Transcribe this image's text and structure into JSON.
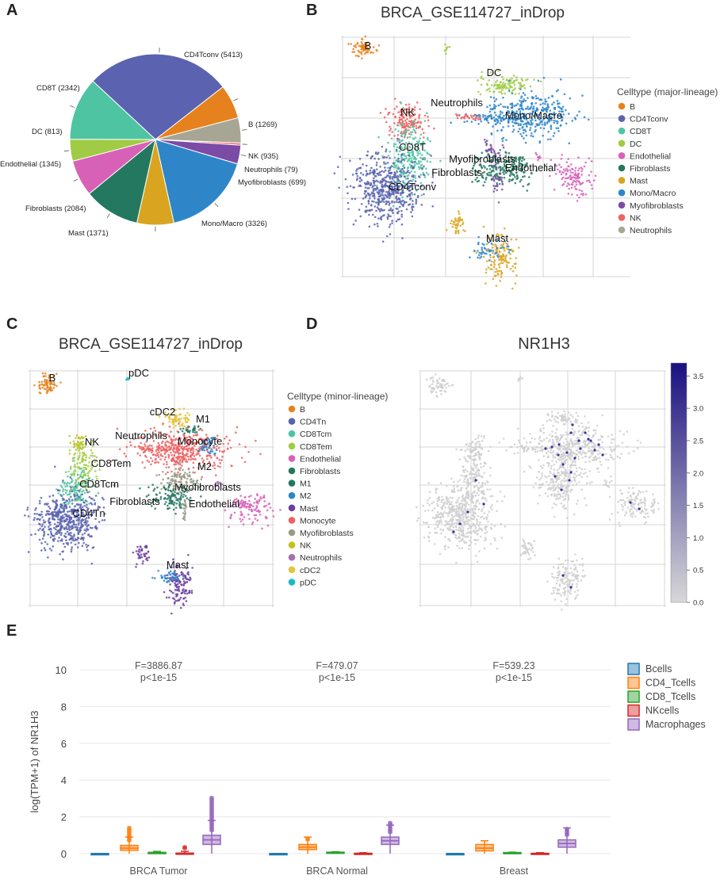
{
  "panel_letters": {
    "a": "A",
    "b": "B",
    "c": "C",
    "d": "D",
    "e": "E"
  },
  "colors": {
    "B": "#e6821e",
    "CD4Tconv": "#5b63b0",
    "CD8T": "#4fc4a2",
    "DC": "#a0cc45",
    "Endothelial": "#d861b8",
    "Fibroblasts": "#247860",
    "Mast": "#d9a520",
    "MonoMacro": "#2e86c9",
    "Myofibroblasts": "#7b4ba6",
    "NK": "#ee6262",
    "Neutrophils": "#a7a594",
    "CD4Tn": "#5b63b0",
    "CD8Tcm": "#4fc4a2",
    "CD8Tem": "#a0cc45",
    "M1": "#247860",
    "M2": "#2e86c9",
    "MastMinor": "#6b3fa0",
    "Monocyte": "#ee6262",
    "MyofibMinor": "#9c9a88",
    "NKMinor": "#c2c21e",
    "NeutroMinor": "#a770b0",
    "cDC2": "#e5c43a",
    "pDC": "#20b8c8",
    "Grey": "#cfcfcf",
    "Dot": "#3a32a0"
  },
  "chart_data": [
    {
      "id": "A",
      "type": "pie",
      "title": "",
      "slices": [
        {
          "name": "CD4Tconv",
          "value": 5413,
          "label": "CD4Tconv (5413)"
        },
        {
          "name": "B",
          "value": 1269,
          "label": "B (1269)"
        },
        {
          "name": "NK",
          "value": 935,
          "label": "NK (935)"
        },
        {
          "name": "Neutrophils",
          "value": 79,
          "label": "Neutrophils (79)"
        },
        {
          "name": "Myofibroblasts",
          "value": 699,
          "label": "Myofibroblasts (699)"
        },
        {
          "name": "Mono/Macro",
          "value": 3326,
          "label": "Mono/Macro (3326)"
        },
        {
          "name": "Mast",
          "value": 1371,
          "label": "Mast (1371)"
        },
        {
          "name": "Fibroblasts",
          "value": 2084,
          "label": "Fibroblasts (2084)"
        },
        {
          "name": "Endothelial",
          "value": 1345,
          "label": "Endothelial (1345)"
        },
        {
          "name": "DC",
          "value": 813,
          "label": "DC (813)"
        },
        {
          "name": "CD8T",
          "value": 2342,
          "label": "CD8T (2342)"
        }
      ]
    },
    {
      "id": "B",
      "type": "scatter",
      "title": "BRCA_GSE114727_inDrop",
      "legend_title": "Celltype (major-lineage)",
      "legend": [
        "B",
        "CD4Tconv",
        "CD8T",
        "DC",
        "Endothelial",
        "Fibroblasts",
        "Mast",
        "Mono/Macro",
        "Myofibroblasts",
        "NK",
        "Neutrophils"
      ],
      "cluster_labels": [
        "B",
        "DC",
        "Neutrophils",
        "NK",
        "Mono/Macro",
        "CD8T",
        "Myofibroblasts",
        "Fibroblasts",
        "Endothelial",
        "CD4Tconv",
        "Mast"
      ]
    },
    {
      "id": "C",
      "type": "scatter",
      "title": "BRCA_GSE114727_inDrop",
      "legend_title": "Celltype (minor-lineage)",
      "legend": [
        "B",
        "CD4Tn",
        "CD8Tcm",
        "CD8Tem",
        "Endothelial",
        "Fibroblasts",
        "M1",
        "M2",
        "Mast",
        "Monocyte",
        "Myofibroblasts",
        "NK",
        "Neutrophils",
        "cDC2",
        "pDC"
      ],
      "cluster_labels": [
        "B",
        "pDC",
        "cDC2",
        "M1",
        "Neutrophils",
        "NK",
        "Monocyte",
        "CD8Tem",
        "M2",
        "CD8Tcm",
        "Myofibroblasts",
        "Fibroblasts",
        "Endothelial",
        "CD4Tn",
        "Mast"
      ]
    },
    {
      "id": "D",
      "type": "scatter",
      "title": "NR1H3",
      "colorbar": {
        "min": 0,
        "max": 3.7,
        "ticks": [
          "0.0",
          "0.5",
          "1.0",
          "1.5",
          "2.0",
          "2.5",
          "3.0",
          "3.5"
        ]
      }
    },
    {
      "id": "E",
      "type": "box",
      "ylabel": "log(TPM+1) of NR1H3",
      "ylim": [
        0,
        10
      ],
      "yticks": [
        "0",
        "2",
        "4",
        "6",
        "8",
        "10"
      ],
      "categories": [
        "BRCA Tumor",
        "BRCA Normal",
        "Breast"
      ],
      "stats": [
        [
          "F=3886.87",
          "p<1e-15"
        ],
        [
          "F=479.07",
          "p<1e-15"
        ],
        [
          "F=539.23",
          "p<1e-15"
        ]
      ],
      "series": [
        {
          "name": "Bcells",
          "color": "#1f77b4",
          "medians": [
            0.0,
            0.0,
            0.0
          ],
          "q1": [
            0.0,
            0.0,
            0.0
          ],
          "q3": [
            0.0,
            0.0,
            0.0
          ],
          "max": [
            0.0,
            0.0,
            0.0
          ]
        },
        {
          "name": "CD4_Tcells",
          "color": "#ff7f0e",
          "medians": [
            0.3,
            0.35,
            0.3
          ],
          "q1": [
            0.18,
            0.22,
            0.15
          ],
          "q3": [
            0.45,
            0.5,
            0.5
          ],
          "max": [
            1.5,
            0.9,
            0.7
          ]
        },
        {
          "name": "CD8_Tcells",
          "color": "#2ca02c",
          "medians": [
            0.04,
            0.05,
            0.04
          ],
          "q1": [
            0.0,
            0.02,
            0.0
          ],
          "q3": [
            0.07,
            0.08,
            0.06
          ],
          "max": [
            0.12,
            0.1,
            0.08
          ]
        },
        {
          "name": "NKcells",
          "color": "#d62728",
          "medians": [
            0.0,
            0.0,
            0.0
          ],
          "q1": [
            0.0,
            0.0,
            0.0
          ],
          "q3": [
            0.03,
            0.02,
            0.02
          ],
          "max": [
            0.4,
            0.05,
            0.05
          ]
        },
        {
          "name": "Macrophages",
          "color": "#9467bd",
          "medians": [
            0.75,
            0.7,
            0.55
          ],
          "q1": [
            0.5,
            0.5,
            0.35
          ],
          "q3": [
            1.0,
            0.9,
            0.75
          ],
          "max": [
            3.1,
            1.75,
            1.45
          ]
        }
      ]
    }
  ]
}
